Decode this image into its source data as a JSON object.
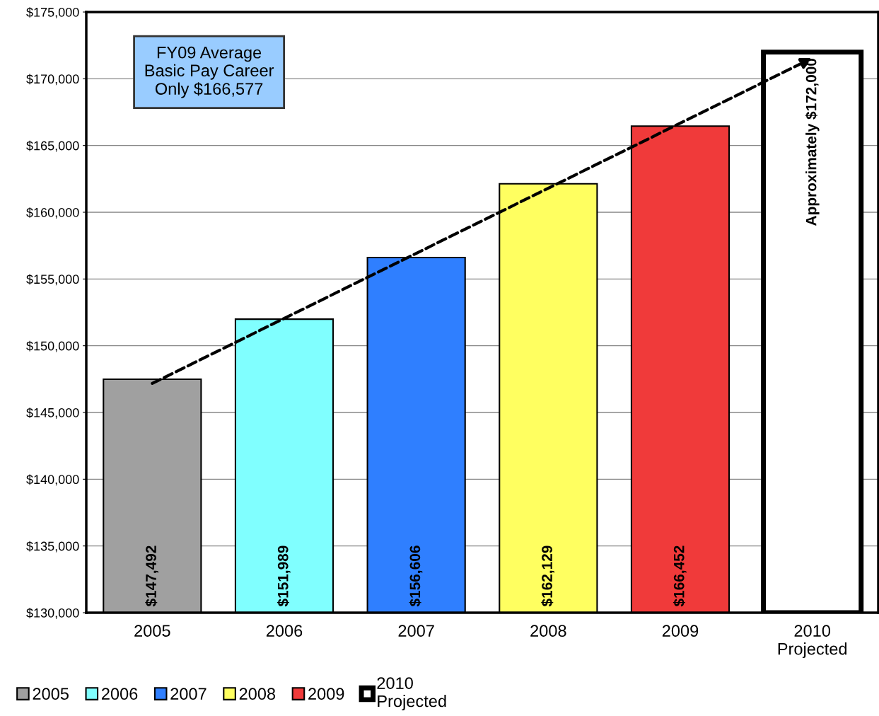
{
  "chart_data": {
    "type": "bar",
    "categories": [
      "2005",
      "2006",
      "2007",
      "2008",
      "2009",
      "2010\nProjected"
    ],
    "series": [
      {
        "name": "2005",
        "color": "#a0a0a0",
        "values": [
          147492,
          null,
          null,
          null,
          null,
          null
        ],
        "value_labels": [
          "$147,492",
          null,
          null,
          null,
          null,
          null
        ]
      },
      {
        "name": "2006",
        "color": "#80ffff",
        "values": [
          null,
          151989,
          null,
          null,
          null,
          null
        ],
        "value_labels": [
          null,
          "$151,989",
          null,
          null,
          null,
          null
        ]
      },
      {
        "name": "2007",
        "color": "#2f7fff",
        "values": [
          null,
          null,
          156606,
          null,
          null,
          null
        ],
        "value_labels": [
          null,
          null,
          "$156,606",
          null,
          null,
          null
        ]
      },
      {
        "name": "2008",
        "color": "#ffff60",
        "values": [
          null,
          null,
          null,
          162129,
          null,
          null
        ],
        "value_labels": [
          null,
          null,
          null,
          "$162,129",
          null,
          null
        ]
      },
      {
        "name": "2009",
        "color": "#f03a3a",
        "values": [
          null,
          null,
          null,
          null,
          166452,
          null
        ],
        "value_labels": [
          null,
          null,
          null,
          null,
          "$166,452",
          null
        ]
      },
      {
        "name": "2010\nProjected",
        "color": "#ffffff",
        "values": [
          null,
          null,
          null,
          null,
          null,
          172000
        ],
        "value_labels": [
          null,
          null,
          null,
          null,
          null,
          "Approximately $172,000"
        ]
      }
    ],
    "ylim": [
      130000,
      175000
    ],
    "yticks": [
      {
        "value": 130000,
        "label": "$130,000"
      },
      {
        "value": 135000,
        "label": "$135,000"
      },
      {
        "value": 140000,
        "label": "$140,000"
      },
      {
        "value": 145000,
        "label": "$145,000"
      },
      {
        "value": 150000,
        "label": "$150,000"
      },
      {
        "value": 155000,
        "label": "$155,000"
      },
      {
        "value": 160000,
        "label": "$160,000"
      },
      {
        "value": 165000,
        "label": "$165,000"
      },
      {
        "value": 170000,
        "label": "$170,000"
      },
      {
        "value": 175000,
        "label": "$175,000"
      }
    ],
    "annotations": [
      "FY09 Average\nBasic Pay Career\nOnly $166,577"
    ],
    "grid": "y",
    "legend": "bottom left"
  }
}
